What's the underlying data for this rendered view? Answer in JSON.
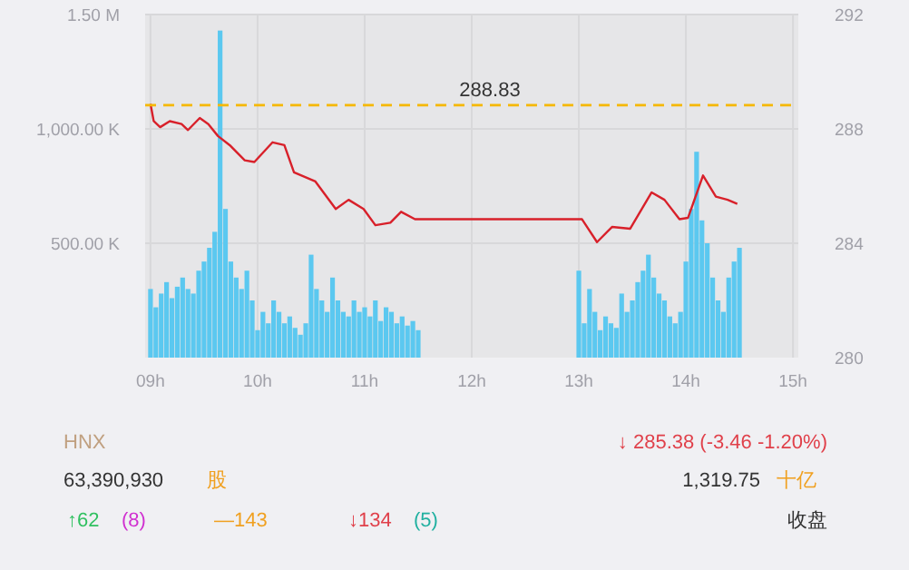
{
  "chart_data": {
    "type": "bar",
    "xlim": [
      8.95,
      15.05
    ],
    "xticks": [
      {
        "value": 9,
        "label": "09h"
      },
      {
        "value": 10,
        "label": "10h"
      },
      {
        "value": 11,
        "label": "11h"
      },
      {
        "value": 12,
        "label": "12h"
      },
      {
        "value": 13,
        "label": "13h"
      },
      {
        "value": 14,
        "label": "14h"
      },
      {
        "value": 15,
        "label": "15h"
      }
    ],
    "ylim": [
      0,
      1500000
    ],
    "yticks": [
      {
        "value": 500000,
        "label": "500.00 K"
      },
      {
        "value": 1000000,
        "label": "1,000.00 K"
      },
      {
        "value": 1500000,
        "label": "1.50 M"
      }
    ],
    "y2lim": [
      280,
      292
    ],
    "y2ticks": [
      280,
      284,
      288,
      292
    ],
    "grid": true,
    "series": [
      {
        "color": "#5bc8f0",
        "x": [
          9.0,
          9.05,
          9.1,
          9.15,
          9.2,
          9.25,
          9.3,
          9.35,
          9.4,
          9.45,
          9.5,
          9.55,
          9.6,
          9.65,
          9.7,
          9.75,
          9.8,
          9.85,
          9.9,
          9.95,
          10.0,
          10.05,
          10.1,
          10.15,
          10.2,
          10.25,
          10.3,
          10.35,
          10.4,
          10.45,
          10.5,
          10.55,
          10.6,
          10.65,
          10.7,
          10.75,
          10.8,
          10.85,
          10.9,
          10.95,
          11.0,
          11.05,
          11.1,
          11.15,
          11.2,
          11.25,
          11.3,
          11.35,
          11.4,
          11.45,
          11.5,
          13.0,
          13.05,
          13.1,
          13.15,
          13.2,
          13.25,
          13.3,
          13.35,
          13.4,
          13.45,
          13.5,
          13.55,
          13.6,
          13.65,
          13.7,
          13.75,
          13.8,
          13.85,
          13.9,
          13.95,
          14.0,
          14.05,
          14.1,
          14.15,
          14.2,
          14.25,
          14.3,
          14.35,
          14.4,
          14.45,
          14.5
        ],
        "values": [
          300000,
          220000,
          280000,
          330000,
          260000,
          310000,
          350000,
          300000,
          280000,
          380000,
          420000,
          480000,
          550000,
          1430000,
          650000,
          420000,
          350000,
          300000,
          380000,
          250000,
          120000,
          200000,
          150000,
          250000,
          200000,
          150000,
          180000,
          130000,
          100000,
          150000,
          450000,
          300000,
          250000,
          200000,
          350000,
          250000,
          200000,
          180000,
          250000,
          200000,
          220000,
          180000,
          250000,
          160000,
          220000,
          200000,
          150000,
          180000,
          140000,
          160000,
          120000,
          380000,
          150000,
          300000,
          200000,
          120000,
          180000,
          150000,
          130000,
          280000,
          200000,
          250000,
          330000,
          380000,
          450000,
          350000,
          280000,
          250000,
          180000,
          150000,
          200000,
          420000,
          650000,
          900000,
          600000,
          500000,
          350000,
          250000,
          200000,
          350000,
          420000,
          480000
        ]
      },
      {
        "type": "line",
        "axis": "y2",
        "color": "#d8202a",
        "x": [
          9.0,
          9.03,
          9.09,
          9.18,
          9.29,
          9.35,
          9.46,
          9.54,
          9.63,
          9.74,
          9.88,
          9.97,
          10.14,
          10.25,
          10.34,
          10.54,
          10.73,
          10.85,
          10.99,
          11.1,
          11.24,
          11.34,
          11.47,
          13.03,
          13.17,
          13.31,
          13.48,
          13.68,
          13.8,
          13.94,
          14.02,
          14.16,
          14.28,
          14.39,
          14.48
        ],
        "values": [
          288.87,
          288.27,
          288.06,
          288.27,
          288.17,
          287.96,
          288.38,
          288.17,
          287.75,
          287.43,
          286.9,
          286.84,
          287.53,
          287.43,
          286.48,
          286.16,
          285.2,
          285.52,
          285.2,
          284.63,
          284.72,
          285.1,
          284.84,
          284.84,
          284.04,
          284.57,
          284.51,
          285.78,
          285.52,
          284.84,
          284.89,
          286.37,
          285.63,
          285.52,
          285.38
        ]
      }
    ],
    "ref_lines": [
      {
        "axis": "y2",
        "value": 288.83,
        "label": "288.83",
        "color": "#f5b800",
        "line_style": "dashed"
      }
    ],
    "annotations": [
      "HNX",
      "↓ 285.38 (-3.46 -1.20%)",
      "63,390,930",
      "股",
      "1,319.75",
      "十亿",
      "↑62",
      "(8)",
      "—143",
      "↓134",
      "(5)",
      "收盘"
    ]
  }
}
